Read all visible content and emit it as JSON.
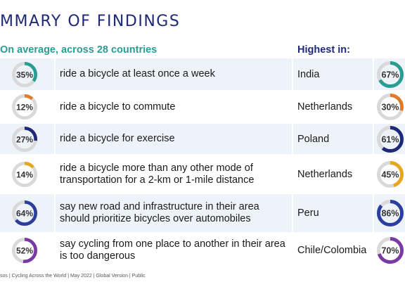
{
  "title": "MMARY OF FINDINGS",
  "average_header": "On average, across 28 countries",
  "highest_header": "Highest in:",
  "colors": {
    "teal": "#2a9d92",
    "orange": "#e07b2e",
    "navy": "#1e2a78",
    "gold": "#e6a821",
    "blue": "#2c3e9e",
    "purple": "#7a3aa3",
    "track": "#d9d9d9"
  },
  "findings": [
    {
      "avg_label": "35%",
      "avg_value": 35,
      "description": "ride a bicycle at least once a week",
      "country": "India",
      "high_label": "67%",
      "high_value": 67,
      "color": "#2a9d92"
    },
    {
      "avg_label": "12%",
      "avg_value": 12,
      "description": "ride a bicycle to commute",
      "country": "Netherlands",
      "high_label": "30%",
      "high_value": 30,
      "color": "#e07b2e"
    },
    {
      "avg_label": "27%",
      "avg_value": 27,
      "description": "ride a bicycle for exercise",
      "country": "Poland",
      "high_label": "61%",
      "high_value": 61,
      "color": "#1e2a78"
    },
    {
      "avg_label": "14%",
      "avg_value": 14,
      "description": "ride a bicycle more than any other mode of transportation for a 2-km or 1-mile distance",
      "country": "Netherlands",
      "high_label": "45%",
      "high_value": 45,
      "color": "#e6a821"
    },
    {
      "avg_label": "64%",
      "avg_value": 64,
      "description": "say new road and infrastructure in their area should prioritize bicycles over automobiles",
      "country": "Peru",
      "high_label": "86%",
      "high_value": 86,
      "color": "#2c3e9e"
    },
    {
      "avg_label": "52%",
      "avg_value": 52,
      "description": "say cycling from one place to another in their area is too dangerous",
      "country": "Chile/Colombia",
      "high_label": "70%",
      "high_value": 70,
      "color": "#7a3aa3"
    }
  ],
  "footer": "sos | Cycling Across the World | May 2022 | Global Version | Public"
}
